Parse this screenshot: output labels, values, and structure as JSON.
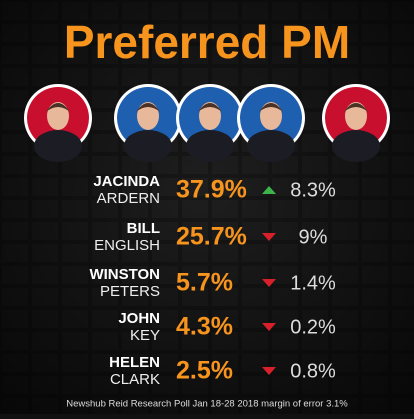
{
  "title": "Preferred PM",
  "candidates": [
    {
      "first_name": "JACINDA",
      "last_name": "ARDERN",
      "share": "37.9%",
      "change": "8.3%",
      "change_direction": "up",
      "photo_color": "#c8102e"
    },
    {
      "first_name": "BILL",
      "last_name": "ENGLISH",
      "share": "25.7%",
      "change": "9%",
      "change_direction": "down",
      "photo_color": "#1f5fb0"
    },
    {
      "first_name": "WINSTON",
      "last_name": "PETERS",
      "share": "5.7%",
      "change": "1.4%",
      "change_direction": "down",
      "photo_color": "#1f5fb0"
    },
    {
      "first_name": "JOHN",
      "last_name": "KEY",
      "share": "4.3%",
      "change": "0.2%",
      "change_direction": "down",
      "photo_color": "#1f5fb0"
    },
    {
      "first_name": "HELEN",
      "last_name": "CLARK",
      "share": "2.5%",
      "change": "0.8%",
      "change_direction": "down",
      "photo_color": "#c8102e"
    }
  ],
  "footer": "Newshub Reid Research Poll Jan 18-28 2018 margin of error 3.1%"
}
